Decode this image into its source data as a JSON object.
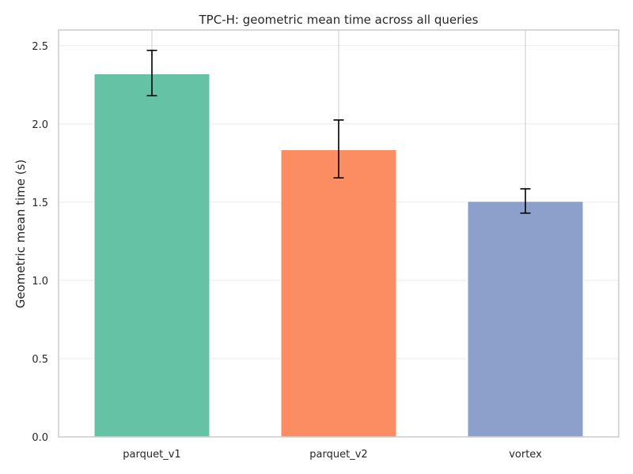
{
  "chart_data": {
    "type": "bar",
    "title": "TPC-H: geometric mean time across all queries",
    "xlabel": "",
    "ylabel": "Geometric mean time (s)",
    "categories": [
      "parquet_v1",
      "parquet_v2",
      "vortex"
    ],
    "values": [
      2.32,
      1.835,
      1.505
    ],
    "error_bars": [
      {
        "low": 2.18,
        "high": 2.47
      },
      {
        "low": 1.655,
        "high": 2.025
      },
      {
        "low": 1.43,
        "high": 1.585
      }
    ],
    "colors": [
      "#66c2a5",
      "#fc8d62",
      "#8da0cb"
    ],
    "ylim": [
      0,
      2.6
    ],
    "yticks": [
      0.0,
      0.5,
      1.0,
      1.5,
      2.0,
      2.5
    ],
    "ytick_labels": [
      "0.0",
      "0.5",
      "1.0",
      "1.5",
      "2.0",
      "2.5"
    ],
    "grid": true,
    "legend": "none"
  }
}
